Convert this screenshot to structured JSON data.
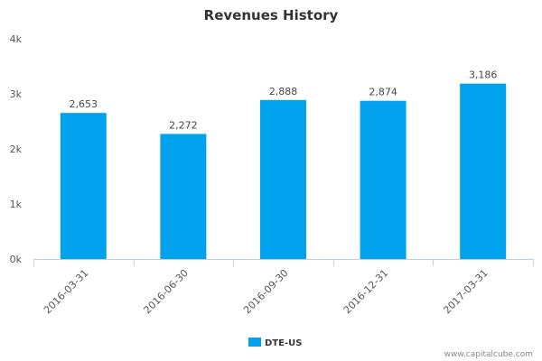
{
  "chart_data": {
    "type": "bar",
    "title": "Revenues History",
    "categories": [
      "2016-03-31",
      "2016-06-30",
      "2016-09-30",
      "2016-12-31",
      "2017-03-31"
    ],
    "series": [
      {
        "name": "DTE-US",
        "values": [
          2653,
          2272,
          2888,
          2874,
          3186
        ],
        "color": "#00a2ed"
      }
    ],
    "data_labels": [
      "2,653",
      "2,272",
      "2,888",
      "2,874",
      "3,186"
    ],
    "y_ticks": [
      {
        "value": 0,
        "label": "0k"
      },
      {
        "value": 1000,
        "label": "1k"
      },
      {
        "value": 2000,
        "label": "2k"
      },
      {
        "value": 3000,
        "label": "3k"
      },
      {
        "value": 4000,
        "label": "4k"
      }
    ],
    "ylim": [
      0,
      4000
    ],
    "xlabel": "",
    "ylabel": "",
    "grid": false,
    "legend_position": "bottom-center"
  },
  "footer": {
    "credit": "www.capitalcube.com"
  }
}
